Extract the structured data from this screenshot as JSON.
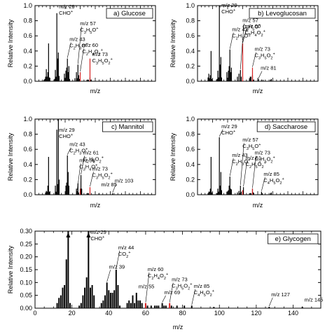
{
  "chart_data": [
    {
      "type": "bar",
      "panel_label": "a) Glucose",
      "xlabel": "m/z",
      "ylabel": "Relative Intensity",
      "xlim": [
        0,
        160
      ],
      "ylim": [
        0,
        1.0
      ],
      "yticks": [
        "0.0",
        "0.2",
        "0.4",
        "0.6",
        "0.8",
        "1.0"
      ],
      "bars": [
        [
          12,
          0.02
        ],
        [
          13,
          0.03
        ],
        [
          14,
          0.06
        ],
        [
          15,
          0.16
        ],
        [
          16,
          0.06
        ],
        [
          17,
          0.12
        ],
        [
          18,
          0.5
        ],
        [
          19,
          0.05
        ],
        [
          26,
          0.03
        ],
        [
          27,
          0.15
        ],
        [
          28,
          0.06
        ],
        [
          29,
          0.9
        ],
        [
          30,
          0.3
        ],
        [
          31,
          0.38
        ],
        [
          32,
          0.07
        ],
        [
          39,
          0.1
        ],
        [
          40,
          0.03
        ],
        [
          41,
          0.14
        ],
        [
          42,
          0.18
        ],
        [
          43,
          0.3
        ],
        [
          44,
          0.12
        ],
        [
          45,
          0.2
        ],
        [
          46,
          0.03
        ],
        [
          53,
          0.04
        ],
        [
          55,
          0.12
        ],
        [
          56,
          0.04
        ],
        [
          57,
          0.22
        ],
        [
          58,
          0.08
        ],
        [
          59,
          0.03
        ],
        [
          69,
          0.02
        ],
        [
          71,
          0.02
        ],
        [
          73,
          0.05
        ],
        [
          74,
          0.02
        ]
      ],
      "highlighted": [
        [
          60,
          0.12
        ],
        [
          73,
          0.3
        ]
      ],
      "annotations": [
        {
          "x": 29,
          "y": 0.98,
          "lines": [
            "m/z 29",
            "CHO+"
          ]
        },
        {
          "x": 57,
          "y": 0.76,
          "lines": [
            "m/z 57",
            "C3H5O+"
          ]
        },
        {
          "x": 43,
          "y": 0.55,
          "lines": [
            "m/z 43",
            "C2H3O+"
          ]
        },
        {
          "x": 60,
          "y": 0.47,
          "lines": [
            "m/z 60",
            "C2H4O2+"
          ]
        },
        {
          "x": 73,
          "y": 0.35,
          "lines": [
            "m/z 73",
            "C3H5O2+"
          ]
        }
      ]
    },
    {
      "type": "bar",
      "panel_label": "b) Levoglucosan",
      "xlabel": "m/z",
      "ylabel": "Relative Intensity",
      "xlim": [
        0,
        160
      ],
      "ylim": [
        0,
        1.0
      ],
      "yticks": [
        "0.0",
        "0.2",
        "0.4",
        "0.6",
        "0.8",
        "1.0"
      ],
      "bars": [
        [
          14,
          0.05
        ],
        [
          15,
          0.1
        ],
        [
          16,
          0.04
        ],
        [
          17,
          0.08
        ],
        [
          18,
          0.4
        ],
        [
          19,
          0.03
        ],
        [
          26,
          0.03
        ],
        [
          27,
          0.14
        ],
        [
          28,
          0.05
        ],
        [
          29,
          1.0
        ],
        [
          30,
          0.22
        ],
        [
          31,
          0.32
        ],
        [
          32,
          0.05
        ],
        [
          39,
          0.12
        ],
        [
          41,
          0.14
        ],
        [
          42,
          0.2
        ],
        [
          43,
          0.42
        ],
        [
          44,
          0.12
        ],
        [
          45,
          0.18
        ],
        [
          53,
          0.06
        ],
        [
          55,
          0.1
        ],
        [
          57,
          0.15
        ],
        [
          58,
          0.06
        ],
        [
          69,
          0.04
        ],
        [
          70,
          0.06
        ],
        [
          71,
          0.06
        ],
        [
          73,
          0.08
        ],
        [
          74,
          0.02
        ],
        [
          81,
          0.03
        ],
        [
          85,
          0.02
        ],
        [
          87,
          0.02
        ],
        [
          97,
          0.02
        ],
        [
          98,
          0.03
        ]
      ],
      "highlighted": [
        [
          60,
          0.5
        ],
        [
          73,
          0.18
        ]
      ],
      "annotations": [
        {
          "x": 29,
          "y": 1.0,
          "lines": [
            "m/z 29",
            "CHO+"
          ]
        },
        {
          "x": 57,
          "y": 0.8,
          "lines": [
            "m/z 57",
            "C3H5O+"
          ]
        },
        {
          "x": 43,
          "y": 0.68,
          "lines": [
            "m/z 43",
            "C2H3O+"
          ]
        },
        {
          "x": 60,
          "y": 0.72,
          "lines": [
            "m/z 60",
            "C2H4O2+"
          ]
        },
        {
          "x": 73,
          "y": 0.42,
          "lines": [
            "m/z 73",
            "C3H5O2+"
          ]
        },
        {
          "x": 81,
          "y": 0.17,
          "lines": [
            "m/z 81"
          ]
        }
      ]
    },
    {
      "type": "bar",
      "panel_label": "c) Mannitol",
      "xlabel": "m/z",
      "ylabel": "Relative Intensity",
      "xlim": [
        0,
        160
      ],
      "ylim": [
        0,
        1.0
      ],
      "yticks": [
        "0.0",
        "0.2",
        "0.4",
        "0.6",
        "0.8",
        "1.0"
      ],
      "bars": [
        [
          14,
          0.03
        ],
        [
          15,
          0.05
        ],
        [
          16,
          0.04
        ],
        [
          17,
          0.12
        ],
        [
          18,
          0.5
        ],
        [
          19,
          0.04
        ],
        [
          27,
          0.12
        ],
        [
          28,
          0.04
        ],
        [
          29,
          0.86
        ],
        [
          30,
          0.14
        ],
        [
          31,
          1.0
        ],
        [
          32,
          0.2
        ],
        [
          41,
          0.12
        ],
        [
          42,
          0.16
        ],
        [
          43,
          0.52
        ],
        [
          44,
          0.3
        ],
        [
          45,
          0.12
        ],
        [
          55,
          0.08
        ],
        [
          56,
          0.05
        ],
        [
          57,
          0.15
        ],
        [
          58,
          0.03
        ],
        [
          61,
          0.26
        ],
        [
          62,
          0.08
        ],
        [
          69,
          0.02
        ],
        [
          71,
          0.02
        ],
        [
          85,
          0.02
        ],
        [
          103,
          0.02
        ]
      ],
      "highlighted": [
        [
          60,
          0.08
        ],
        [
          73,
          0.1
        ]
      ],
      "annotations": [
        {
          "x": 29,
          "y": 0.85,
          "lines": [
            "m/z 29",
            "CHO+"
          ]
        },
        {
          "x": 43,
          "y": 0.66,
          "lines": [
            "m/z 43",
            "C2H3O+"
          ]
        },
        {
          "x": 56,
          "y": 0.45,
          "lines": [
            "m/z 56",
            "C3H4O+"
          ]
        },
        {
          "x": 61,
          "y": 0.55,
          "lines": [
            "m/z 61",
            "C2H5O2+"
          ]
        },
        {
          "x": 73,
          "y": 0.34,
          "lines": [
            "m/z 73",
            "C3H5O2+"
          ]
        },
        {
          "x": 85,
          "y": 0.13,
          "lines": [
            "m/z 85"
          ]
        },
        {
          "x": 103,
          "y": 0.18,
          "lines": [
            "m/z 103"
          ]
        }
      ]
    },
    {
      "type": "bar",
      "panel_label": "d) Saccharose",
      "xlabel": "m/z",
      "ylabel": "Relative Intensity",
      "xlim": [
        0,
        160
      ],
      "ylim": [
        0,
        1.0
      ],
      "yticks": [
        "0.0",
        "0.2",
        "0.4",
        "0.6",
        "0.8",
        "1.0"
      ],
      "bars": [
        [
          14,
          0.02
        ],
        [
          15,
          0.04
        ],
        [
          16,
          0.04
        ],
        [
          17,
          0.08
        ],
        [
          18,
          0.5
        ],
        [
          19,
          0.03
        ],
        [
          26,
          0.02
        ],
        [
          27,
          0.08
        ],
        [
          28,
          0.04
        ],
        [
          29,
          0.76
        ],
        [
          30,
          0.12
        ],
        [
          31,
          0.3
        ],
        [
          32,
          0.06
        ],
        [
          39,
          0.04
        ],
        [
          41,
          0.06
        ],
        [
          42,
          0.12
        ],
        [
          43,
          0.24
        ],
        [
          44,
          0.08
        ],
        [
          45,
          0.07
        ],
        [
          53,
          0.03
        ],
        [
          55,
          0.05
        ],
        [
          56,
          0.02
        ],
        [
          57,
          0.12
        ],
        [
          58,
          0.04
        ],
        [
          60,
          0.05
        ],
        [
          61,
          0.1
        ],
        [
          69,
          0.02
        ],
        [
          71,
          0.02
        ],
        [
          73,
          0.08
        ],
        [
          74,
          0.03
        ],
        [
          85,
          0.04
        ],
        [
          86,
          0.02
        ],
        [
          97,
          0.02
        ],
        [
          98,
          0.03
        ]
      ],
      "highlighted": [
        [
          60,
          0.06
        ],
        [
          73,
          0.08
        ]
      ],
      "annotations": [
        {
          "x": 29,
          "y": 0.9,
          "lines": [
            "m/z 29",
            "CHO+"
          ]
        },
        {
          "x": 57,
          "y": 0.72,
          "lines": [
            "m/z 57",
            "C3H5O+"
          ]
        },
        {
          "x": 43,
          "y": 0.52,
          "lines": [
            "m/z 43",
            "C2H3O+"
          ]
        },
        {
          "x": 61,
          "y": 0.48,
          "lines": [
            "m/z 61",
            "C2H5O2+"
          ]
        },
        {
          "x": 73,
          "y": 0.55,
          "lines": [
            "m/z 73",
            "C3H5O2+"
          ]
        },
        {
          "x": 85,
          "y": 0.27,
          "lines": [
            "m/z 85",
            "C4H5O2+"
          ]
        }
      ]
    },
    {
      "type": "bar",
      "panel_label": "e) Glycogen",
      "xlabel": "m/z",
      "ylabel": "Relative Intensity",
      "xlim": [
        0,
        155
      ],
      "xticks": [
        "0",
        "20",
        "40",
        "60",
        "80",
        "100",
        "120",
        "140"
      ],
      "ylim": [
        0,
        0.3
      ],
      "yticks": [
        "0.00",
        "0.05",
        "0.10",
        "0.15",
        "0.20",
        "0.25",
        "0.30"
      ],
      "bars": [
        [
          12,
          0.02
        ],
        [
          13,
          0.04
        ],
        [
          14,
          0.05
        ],
        [
          15,
          0.08
        ],
        [
          16,
          0.09
        ],
        [
          17,
          0.19
        ],
        [
          18,
          0.3
        ],
        [
          19,
          0.02
        ],
        [
          24,
          0.01
        ],
        [
          25,
          0.02
        ],
        [
          26,
          0.05
        ],
        [
          27,
          0.08
        ],
        [
          28,
          0.12
        ],
        [
          29,
          0.3
        ],
        [
          30,
          0.08
        ],
        [
          31,
          0.09
        ],
        [
          32,
          0.05
        ],
        [
          36,
          0.02
        ],
        [
          37,
          0.03
        ],
        [
          38,
          0.05
        ],
        [
          39,
          0.1
        ],
        [
          40,
          0.07
        ],
        [
          41,
          0.06
        ],
        [
          42,
          0.06
        ],
        [
          43,
          0.07
        ],
        [
          44,
          0.15
        ],
        [
          45,
          0.09
        ],
        [
          46,
          0.01
        ],
        [
          50,
          0.02
        ],
        [
          51,
          0.03
        ],
        [
          52,
          0.02
        ],
        [
          53,
          0.05
        ],
        [
          54,
          0.02
        ],
        [
          55,
          0.06
        ],
        [
          56,
          0.03
        ],
        [
          57,
          0.03
        ],
        [
          58,
          0.02
        ],
        [
          61,
          0.01
        ],
        [
          63,
          0.01
        ],
        [
          65,
          0.01
        ],
        [
          66,
          0.01
        ],
        [
          67,
          0.01
        ],
        [
          69,
          0.02
        ],
        [
          70,
          0.01
        ],
        [
          71,
          0.01
        ],
        [
          74,
          0.01
        ],
        [
          77,
          0.01
        ],
        [
          81,
          0.01
        ],
        [
          85,
          0.01
        ],
        [
          97,
          0.005
        ],
        [
          127,
          0.005
        ],
        [
          145,
          0.005
        ]
      ],
      "highlighted": [
        [
          60,
          0.02
        ],
        [
          73,
          0.02
        ]
      ],
      "annotations": [
        {
          "x": 29,
          "y": 0.295,
          "lines": [
            "m/z 29",
            "CHO+"
          ]
        },
        {
          "x": 44,
          "y": 0.235,
          "lines": [
            "m/z 44",
            "CO2+"
          ]
        },
        {
          "x": 39,
          "y": 0.16,
          "lines": [
            "m/z 39"
          ]
        },
        {
          "x": 60,
          "y": 0.15,
          "lines": [
            "m/z 60",
            "C2H4O2+"
          ]
        },
        {
          "x": 55,
          "y": 0.083,
          "lines": [
            "m/z 55"
          ]
        },
        {
          "x": 69,
          "y": 0.06,
          "lines": [
            "m/z 69"
          ]
        },
        {
          "x": 73,
          "y": 0.11,
          "lines": [
            "m/z 73",
            "C3H5O2+"
          ]
        },
        {
          "x": 85,
          "y": 0.085,
          "lines": [
            "m/z 85",
            "C4H5O2+"
          ]
        },
        {
          "x": 127,
          "y": 0.052,
          "lines": [
            "m/z 127"
          ]
        },
        {
          "x": 145,
          "y": 0.032,
          "lines": [
            "m/z 145"
          ]
        }
      ]
    }
  ],
  "colors": {
    "bars": "#000000",
    "highlight": "#d62020",
    "axes": "#000000"
  }
}
